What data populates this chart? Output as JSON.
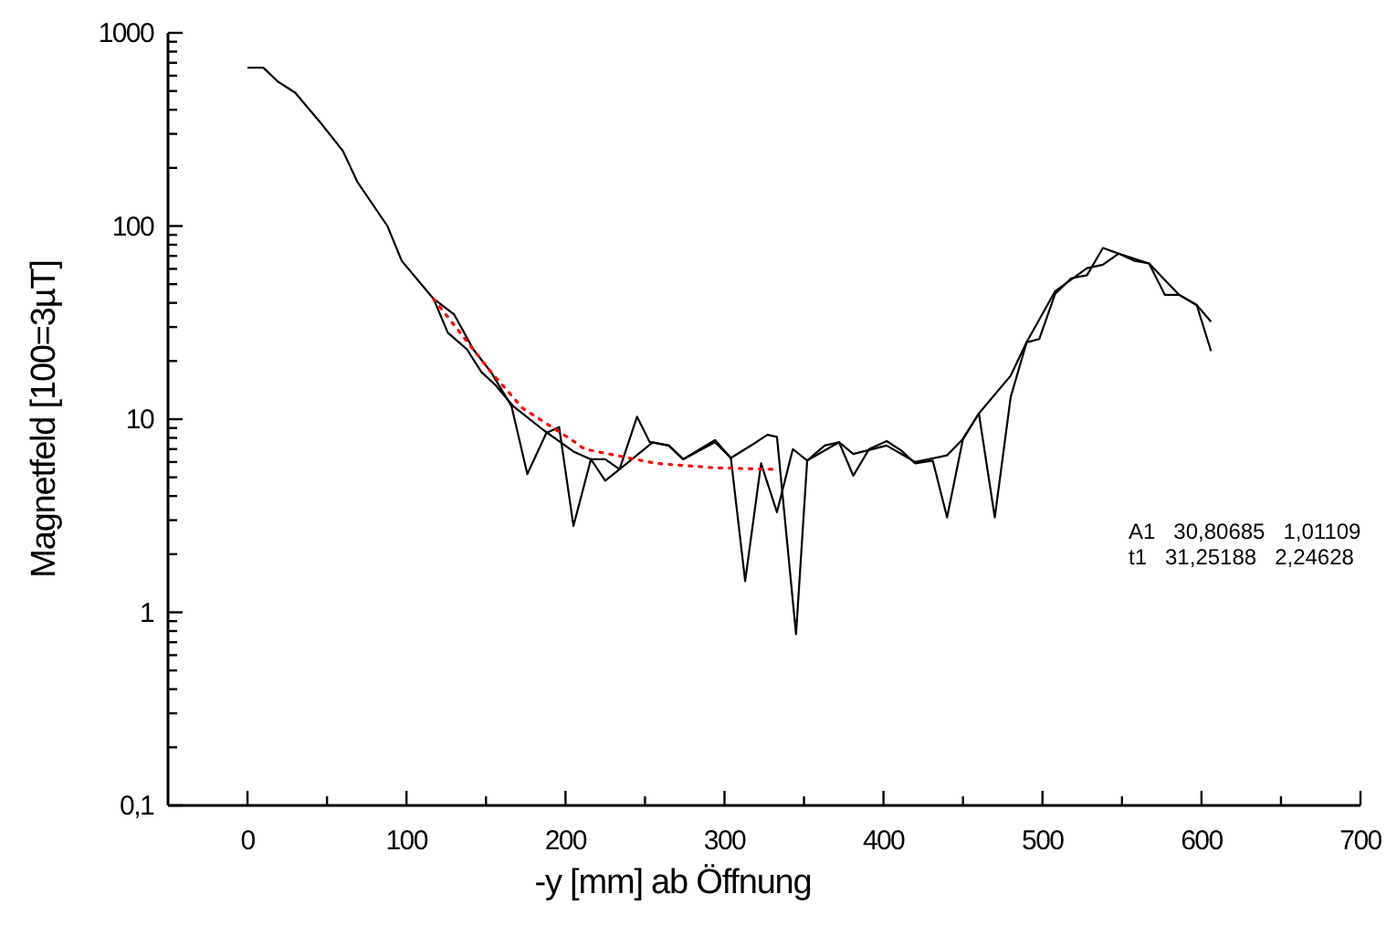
{
  "chart_data": {
    "type": "line",
    "xlabel": "-y [mm] ab Öffnung",
    "ylabel": "Magnetfeld [100=3µT]",
    "log": "y",
    "xlim": [
      -50,
      700
    ],
    "ylim": [
      0.1,
      1000
    ],
    "xticks": [
      0,
      {
        "value": 50,
        "label": null
      },
      100,
      {
        "value": 150,
        "label": null
      },
      200,
      {
        "value": 250,
        "label": null
      },
      300,
      {
        "value": 350,
        "label": null
      },
      400,
      {
        "value": 450,
        "label": null
      },
      500,
      {
        "value": 550,
        "label": null
      },
      600,
      {
        "value": 650,
        "label": null
      },
      700
    ],
    "yticks": [
      {
        "value": 0.1,
        "label": "0,1"
      },
      {
        "value": 0.2,
        "label": null
      },
      {
        "value": 0.3,
        "label": null
      },
      {
        "value": 0.4,
        "label": null
      },
      {
        "value": 0.5,
        "label": null
      },
      {
        "value": 0.6,
        "label": null
      },
      {
        "value": 0.7,
        "label": null
      },
      {
        "value": 0.8,
        "label": null
      },
      {
        "value": 0.9,
        "label": null
      },
      1,
      {
        "value": 2,
        "label": null
      },
      {
        "value": 3,
        "label": null
      },
      {
        "value": 4,
        "label": null
      },
      {
        "value": 5,
        "label": null
      },
      {
        "value": 6,
        "label": null
      },
      {
        "value": 7,
        "label": null
      },
      {
        "value": 8,
        "label": null
      },
      {
        "value": 9,
        "label": null
      },
      10,
      {
        "value": 20,
        "label": null
      },
      {
        "value": 30,
        "label": null
      },
      {
        "value": 40,
        "label": null
      },
      {
        "value": 50,
        "label": null
      },
      {
        "value": 60,
        "label": null
      },
      {
        "value": 70,
        "label": null
      },
      {
        "value": 80,
        "label": null
      },
      {
        "value": 90,
        "label": null
      },
      100,
      {
        "value": 200,
        "label": null
      },
      {
        "value": 300,
        "label": null
      },
      {
        "value": 400,
        "label": null
      },
      {
        "value": 500,
        "label": null
      },
      {
        "value": 600,
        "label": null
      },
      {
        "value": 700,
        "label": null
      },
      {
        "value": 800,
        "label": null
      },
      {
        "value": 900,
        "label": null
      },
      1000
    ],
    "marker": "none",
    "annotations": [
      "A1   30,80685   1,01109",
      "t1   31,25188   2,24628"
    ],
    "series": [
      {
        "color": "#000000",
        "x": [
          0,
          10,
          19,
          30,
          45,
          60,
          69,
          88,
          97,
          117,
          126,
          138,
          147,
          156,
          167,
          186,
          205,
          216,
          225,
          234,
          255,
          265,
          274,
          294,
          304,
          320,
          327,
          333,
          345,
          352,
          363,
          372,
          381,
          391,
          402,
          411,
          420,
          431,
          440,
          450,
          460,
          470,
          480,
          490,
          498,
          508,
          518,
          528,
          538,
          548,
          558,
          567,
          577,
          586,
          597,
          606
        ],
        "values": [
          660,
          660,
          560,
          490,
          350,
          245,
          170,
          100,
          66,
          42,
          28,
          23,
          17.6,
          15,
          11.7,
          8.8,
          6.8,
          6.2,
          6.2,
          5.5,
          7.6,
          7.3,
          6.2,
          7.6,
          6.3,
          7.6,
          8.3,
          8.1,
          0.77,
          6.1,
          7.3,
          7.6,
          5.1,
          7,
          7.7,
          6.9,
          5.9,
          6.1,
          3.1,
          7.9,
          10.7,
          3.1,
          13,
          25,
          26,
          44.6,
          53.6,
          55.6,
          77,
          72,
          66,
          64,
          44,
          44,
          39,
          22.5
        ]
      },
      {
        "color": "#000000",
        "x": [
          117,
          130,
          142,
          153,
          166,
          176,
          188,
          196,
          205,
          216,
          225,
          234,
          245,
          253,
          265,
          274,
          294,
          304,
          313,
          323,
          333,
          343,
          352,
          372,
          381,
          402,
          420,
          440,
          450,
          460,
          480,
          490,
          508,
          528,
          538,
          548,
          567,
          586,
          597,
          606
        ],
        "values": [
          42,
          34.8,
          23,
          17.6,
          11.7,
          5.2,
          8.5,
          9.1,
          2.8,
          6.2,
          4.8,
          5.5,
          10.3,
          7.6,
          7.3,
          6.2,
          7.8,
          6.3,
          1.45,
          5.9,
          3.3,
          7,
          6.1,
          7.6,
          6.6,
          7.3,
          6,
          6.5,
          7.9,
          10.7,
          16.8,
          25,
          46,
          60.5,
          63,
          72,
          64,
          44,
          39,
          32
        ]
      },
      {
        "color": "#ff0000",
        "line_style": "dotted",
        "x": [
          117,
          153,
          173,
          203,
          212,
          257,
          294,
          331
        ],
        "values": [
          42,
          17.6,
          11.4,
          7.9,
          7,
          5.9,
          5.6,
          5.5
        ]
      }
    ]
  }
}
